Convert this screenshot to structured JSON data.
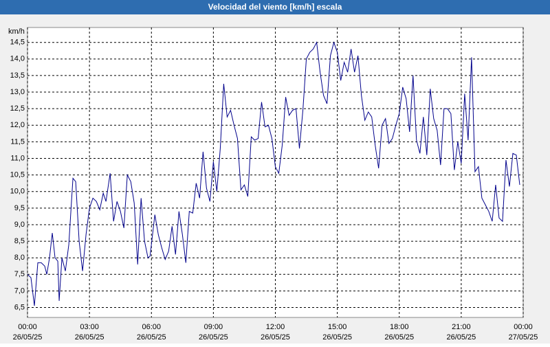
{
  "chart_data": {
    "type": "line",
    "title": "Velocidad del viento [km/h] escala",
    "y_label": "km/h",
    "x": [
      0,
      10,
      20,
      30,
      40,
      50,
      56,
      64,
      72,
      80,
      88,
      92,
      100,
      110,
      120,
      132,
      140,
      150,
      160,
      170,
      180,
      190,
      200,
      210,
      220,
      228,
      240,
      250,
      260,
      270,
      280,
      290,
      300,
      310,
      320,
      330,
      340,
      350,
      356,
      370,
      380,
      390,
      400,
      410,
      420,
      430,
      440,
      450,
      460,
      470,
      480,
      490,
      500,
      510,
      520,
      530,
      540,
      550,
      560,
      570,
      580,
      590,
      600,
      610,
      620,
      630,
      640,
      650,
      660,
      670,
      680,
      690,
      700,
      710,
      720,
      730,
      740,
      750,
      760,
      770,
      780,
      790,
      800,
      810,
      820,
      830,
      840,
      850,
      860,
      870,
      880,
      890,
      900,
      910,
      920,
      930,
      940,
      950,
      960,
      970,
      980,
      990,
      1000,
      1010,
      1020,
      1030,
      1040,
      1050,
      1060,
      1070,
      1080,
      1090,
      1100,
      1110,
      1120,
      1130,
      1140,
      1150,
      1160,
      1170,
      1180,
      1190,
      1200,
      1210,
      1220,
      1230,
      1240,
      1250,
      1260,
      1270,
      1280,
      1290,
      1300,
      1310,
      1320,
      1330,
      1340,
      1350,
      1360,
      1370,
      1380,
      1390,
      1400,
      1410,
      1420,
      1430
    ],
    "series": [
      {
        "name": "Velocidad del viento",
        "color": "#00008b",
        "values": [
          7.5,
          7.4,
          6.55,
          7.85,
          7.85,
          7.75,
          7.5,
          8.0,
          8.75,
          8.0,
          7.9,
          6.7,
          8.0,
          7.6,
          8.4,
          10.4,
          10.3,
          8.5,
          7.6,
          8.7,
          9.5,
          9.8,
          9.7,
          9.45,
          9.95,
          9.7,
          10.55,
          9.1,
          9.7,
          9.4,
          8.9,
          10.5,
          10.3,
          9.65,
          7.8,
          9.8,
          8.5,
          8.0,
          8.05,
          9.3,
          8.7,
          8.3,
          7.95,
          8.2,
          8.95,
          8.1,
          9.4,
          8.7,
          7.85,
          9.4,
          9.35,
          10.25,
          9.8,
          11.2,
          10.1,
          9.7,
          10.9,
          10.0,
          11.3,
          13.25,
          12.25,
          12.45,
          12.0,
          11.6,
          10.05,
          10.2,
          9.85,
          11.65,
          11.55,
          11.6,
          12.7,
          11.95,
          12.0,
          11.6,
          10.75,
          10.55,
          11.4,
          12.85,
          12.3,
          12.45,
          12.5,
          11.3,
          12.45,
          14.0,
          14.2,
          14.3,
          14.5,
          13.6,
          12.9,
          12.65,
          14.1,
          14.5,
          14.2,
          13.35,
          13.9,
          13.6,
          14.3,
          13.6,
          14.1,
          12.9,
          12.15,
          12.4,
          12.25,
          11.4,
          10.7,
          12.0,
          12.2,
          11.45,
          11.6,
          12.0,
          12.35,
          13.15,
          12.8,
          11.8,
          13.5,
          11.55,
          11.15,
          12.25,
          11.1,
          13.1,
          12.2,
          11.85,
          10.8,
          12.5,
          12.5,
          12.35,
          10.65,
          11.5,
          10.85,
          12.95,
          11.55,
          14.05,
          10.6,
          10.75,
          9.8,
          9.6,
          9.4,
          9.1,
          10.2,
          9.2,
          9.1,
          10.95,
          10.15,
          11.15,
          11.1,
          10.2
        ]
      }
    ],
    "xlim": [
      0,
      1440
    ],
    "xticks": [
      {
        "value": 0,
        "label": "00:00"
      },
      {
        "value": 180,
        "label": "03:00"
      },
      {
        "value": 360,
        "label": "06:00"
      },
      {
        "value": 540,
        "label": "09:00"
      },
      {
        "value": 720,
        "label": "12:00"
      },
      {
        "value": 900,
        "label": "15:00"
      },
      {
        "value": 1080,
        "label": "18:00"
      },
      {
        "value": 1260,
        "label": "21:00"
      },
      {
        "value": 1440,
        "label": "00:00"
      }
    ],
    "xtick_dates": [
      "26/05/25",
      "26/05/25",
      "26/05/25",
      "26/05/25",
      "26/05/25",
      "26/05/25",
      "26/05/25",
      "26/05/25",
      "27/05/25"
    ],
    "ylim": [
      6.2,
      14.95
    ],
    "yticks": [
      {
        "value": 6.5,
        "label": "6,5"
      },
      {
        "value": 7,
        "label": "7,0"
      },
      {
        "value": 7.5,
        "label": "7,5"
      },
      {
        "value": 8,
        "label": "8,0"
      },
      {
        "value": 8.5,
        "label": "8,5"
      },
      {
        "value": 9,
        "label": "9,0"
      },
      {
        "value": 9.5,
        "label": "9,5"
      },
      {
        "value": 10,
        "label": "10,0"
      },
      {
        "value": 10.5,
        "label": "10,5"
      },
      {
        "value": 11,
        "label": "11,0"
      },
      {
        "value": 11.5,
        "label": "11,5"
      },
      {
        "value": 12,
        "label": "12,0"
      },
      {
        "value": 12.5,
        "label": "12,5"
      },
      {
        "value": 13,
        "label": "13,0"
      },
      {
        "value": 13.5,
        "label": "13,5"
      },
      {
        "value": 14,
        "label": "14,0"
      },
      {
        "value": 14.5,
        "label": "14,5"
      }
    ],
    "grid": true
  }
}
